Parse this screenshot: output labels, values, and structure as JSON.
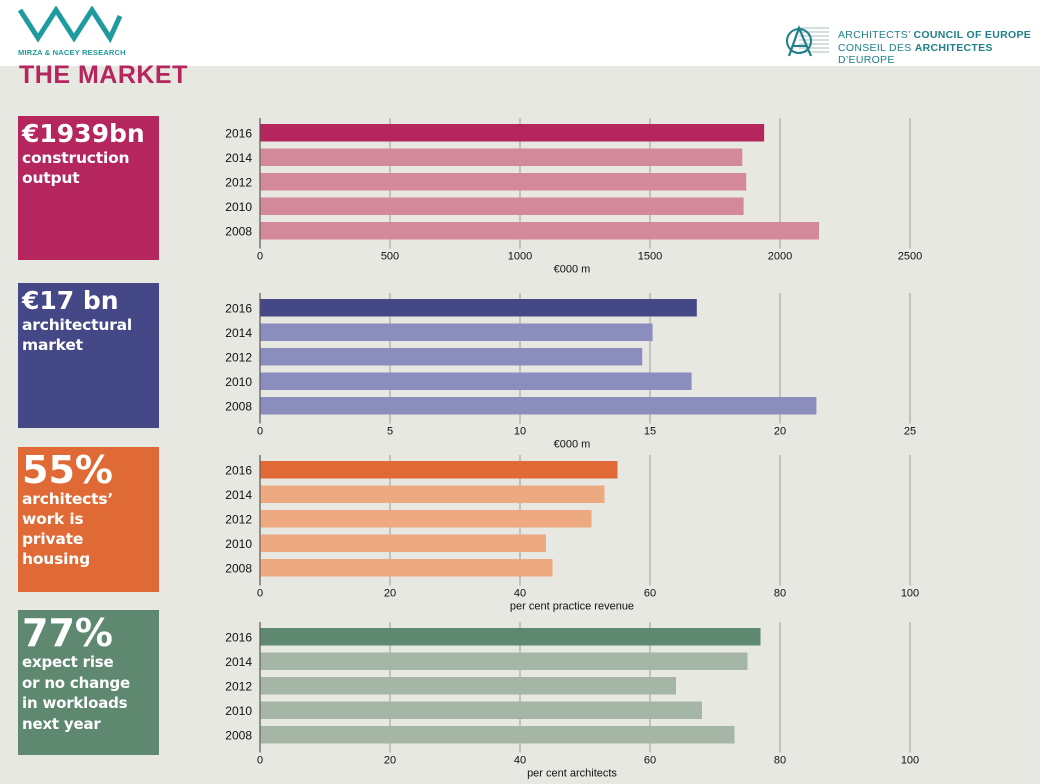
{
  "header": {
    "left_logo_text": "MIRZA & NACEY RESEARCH",
    "right_logo_line1_normal": "ARCHITECTS’ ",
    "right_logo_line1_bold": "COUNCIL OF EUROPE",
    "right_logo_line2_normal": "CONSEIL DES ",
    "right_logo_line2_bold": "ARCHITECTES",
    "right_logo_line2_end": " D’EUROPE"
  },
  "title": "THE MARKET",
  "colors": {
    "magenta": "#b5255e",
    "navy": "#454887",
    "orange": "#e06a35",
    "green": "#5f8870",
    "teal": "#1e9b9e"
  },
  "stats": [
    {
      "big": "€1939bn",
      "desc": [
        "construction",
        "output"
      ]
    },
    {
      "big": "€17 bn",
      "desc": [
        "architectural",
        "market"
      ]
    },
    {
      "big": "55%",
      "desc": [
        "architects’",
        "work is",
        "private",
        "housing"
      ]
    },
    {
      "big": "77%",
      "desc": [
        "expect rise",
        "or no change",
        "in workloads",
        "next year"
      ]
    }
  ],
  "chart_data": [
    {
      "type": "bar",
      "orientation": "horizontal",
      "categories": [
        "2016",
        "2014",
        "2012",
        "2010",
        "2008"
      ],
      "values": [
        1939,
        1855,
        1870,
        1860,
        2150
      ],
      "xlim": [
        0,
        2500
      ],
      "xticks": [
        "0",
        "500",
        "1000",
        "1500",
        "2000",
        "2500"
      ],
      "xlabel": "€000 m",
      "highlight_color": "#b5255e",
      "color": "#d4899b"
    },
    {
      "type": "bar",
      "orientation": "horizontal",
      "categories": [
        "2016",
        "2014",
        "2012",
        "2010",
        "2008"
      ],
      "values": [
        16.8,
        15.1,
        14.7,
        16.6,
        21.4
      ],
      "xlim": [
        0,
        25
      ],
      "xticks": [
        "0",
        "5",
        "10",
        "15",
        "20",
        "25"
      ],
      "xlabel": "€000 m",
      "highlight_color": "#454887",
      "color": "#8b8dbd"
    },
    {
      "type": "bar",
      "orientation": "horizontal",
      "categories": [
        "2016",
        "2014",
        "2012",
        "2010",
        "2008"
      ],
      "values": [
        55,
        53,
        51,
        44,
        45
      ],
      "xlim": [
        0,
        100
      ],
      "xticks": [
        "0",
        "20",
        "40",
        "60",
        "80",
        "100"
      ],
      "xlabel": "per cent practice revenue",
      "highlight_color": "#e06a35",
      "color": "#eda97f"
    },
    {
      "type": "bar",
      "orientation": "horizontal",
      "categories": [
        "2016",
        "2014",
        "2012",
        "2010",
        "2008"
      ],
      "values": [
        77,
        75,
        64,
        68,
        73
      ],
      "xlim": [
        0,
        100
      ],
      "xticks": [
        "0",
        "20",
        "40",
        "60",
        "80",
        "100"
      ],
      "xlabel": "per cent architects",
      "highlight_color": "#5f8870",
      "color": "#a6b6a6"
    }
  ]
}
